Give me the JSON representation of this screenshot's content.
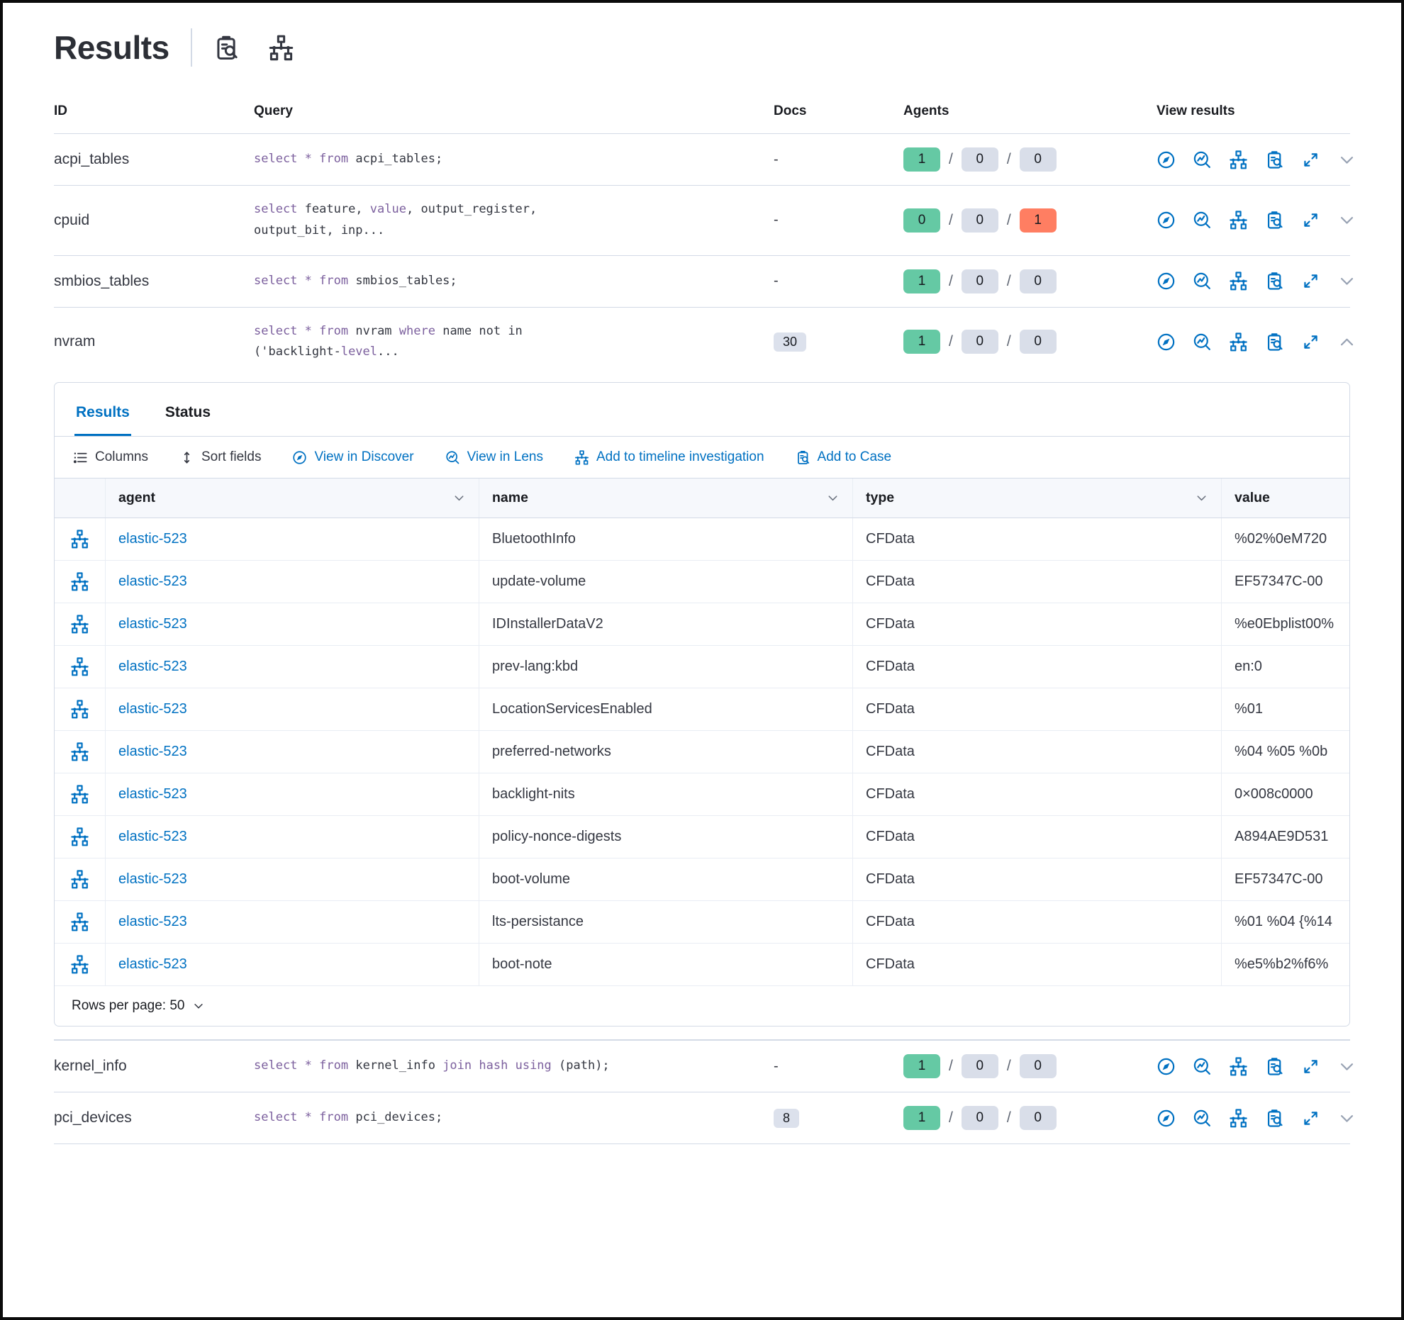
{
  "page": {
    "title": "Results"
  },
  "colors": {
    "accent_blue": "#0071C2",
    "keyword_purple": "#7C609E",
    "badge_green": "#65C9A4",
    "badge_gray": "#D9DEE9",
    "badge_red": "#FF7E62",
    "border": "#D3DAE6"
  },
  "table": {
    "columns": [
      "ID",
      "Query",
      "Docs",
      "Agents",
      "View results"
    ],
    "rows": [
      {
        "id": "acpi_tables",
        "query_lines": [
          [
            [
              "select",
              "k"
            ],
            [
              " ",
              "t"
            ],
            [
              "*",
              "k"
            ],
            [
              " ",
              "t"
            ],
            [
              "from",
              "k"
            ],
            [
              " acpi_tables;",
              "t"
            ]
          ]
        ],
        "docs": "-",
        "docs_badge": false,
        "agents": [
          [
            "1",
            "green"
          ],
          [
            "0",
            "gray"
          ],
          [
            "0",
            "gray"
          ]
        ],
        "expanded": false
      },
      {
        "id": "cpuid",
        "query_lines": [
          [
            [
              "select",
              "k"
            ],
            [
              " feature, ",
              "t"
            ],
            [
              "value",
              "k"
            ],
            [
              ", output_register,",
              "t"
            ]
          ],
          [
            [
              "output_bit, inp...",
              "t"
            ]
          ]
        ],
        "docs": "-",
        "docs_badge": false,
        "agents": [
          [
            "0",
            "green"
          ],
          [
            "0",
            "gray"
          ],
          [
            "1",
            "red"
          ]
        ],
        "expanded": false
      },
      {
        "id": "smbios_tables",
        "query_lines": [
          [
            [
              "select",
              "k"
            ],
            [
              " ",
              "t"
            ],
            [
              "*",
              "k"
            ],
            [
              " ",
              "t"
            ],
            [
              "from",
              "k"
            ],
            [
              " smbios_tables;",
              "t"
            ]
          ]
        ],
        "docs": "-",
        "docs_badge": false,
        "agents": [
          [
            "1",
            "green"
          ],
          [
            "0",
            "gray"
          ],
          [
            "0",
            "gray"
          ]
        ],
        "expanded": false
      },
      {
        "id": "nvram",
        "query_lines": [
          [
            [
              "select",
              "k"
            ],
            [
              " ",
              "t"
            ],
            [
              "*",
              "k"
            ],
            [
              " ",
              "t"
            ],
            [
              "from",
              "k"
            ],
            [
              " nvram ",
              "t"
            ],
            [
              "where",
              "k"
            ],
            [
              " name not in",
              "t"
            ]
          ],
          [
            [
              "('backlight-",
              "t"
            ],
            [
              "level",
              "k"
            ],
            [
              "...",
              "t"
            ]
          ]
        ],
        "docs": "30",
        "docs_badge": true,
        "agents": [
          [
            "1",
            "green"
          ],
          [
            "0",
            "gray"
          ],
          [
            "0",
            "gray"
          ]
        ],
        "expanded": true
      },
      {
        "id": "kernel_info",
        "query_lines": [
          [
            [
              "select",
              "k"
            ],
            [
              " ",
              "t"
            ],
            [
              "*",
              "k"
            ],
            [
              " ",
              "t"
            ],
            [
              "from",
              "k"
            ],
            [
              " kernel_info ",
              "t"
            ],
            [
              "join",
              "k"
            ],
            [
              " ",
              "t"
            ],
            [
              "hash",
              "k"
            ],
            [
              " ",
              "t"
            ],
            [
              "using",
              "k"
            ],
            [
              " (path);",
              "t"
            ]
          ]
        ],
        "docs": "-",
        "docs_badge": false,
        "agents": [
          [
            "1",
            "green"
          ],
          [
            "0",
            "gray"
          ],
          [
            "0",
            "gray"
          ]
        ],
        "expanded": false
      },
      {
        "id": "pci_devices",
        "query_lines": [
          [
            [
              "select",
              "k"
            ],
            [
              " ",
              "t"
            ],
            [
              "*",
              "k"
            ],
            [
              " ",
              "t"
            ],
            [
              "from",
              "k"
            ],
            [
              " pci_devices;",
              "t"
            ]
          ]
        ],
        "docs": "8",
        "docs_badge": true,
        "agents": [
          [
            "1",
            "green"
          ],
          [
            "0",
            "gray"
          ],
          [
            "0",
            "gray"
          ]
        ],
        "expanded": false
      }
    ]
  },
  "panel": {
    "tabs": [
      {
        "label": "Results",
        "active": true
      },
      {
        "label": "Status",
        "active": false
      }
    ],
    "toolbar": [
      {
        "label": "Columns",
        "icon": "columns",
        "link": false
      },
      {
        "label": "Sort fields",
        "icon": "sort",
        "link": false
      },
      {
        "label": "View in Discover",
        "icon": "discover",
        "link": true
      },
      {
        "label": "View in Lens",
        "icon": "lens",
        "link": true
      },
      {
        "label": "Add to timeline investigation",
        "icon": "timeline",
        "link": true
      },
      {
        "label": "Add to Case",
        "icon": "casebook",
        "link": true
      }
    ],
    "grid": {
      "columns": [
        {
          "label": "agent",
          "sortable": true
        },
        {
          "label": "name",
          "sortable": true
        },
        {
          "label": "type",
          "sortable": true
        },
        {
          "label": "value",
          "sortable": false
        }
      ],
      "rows": [
        {
          "agent": "elastic-523",
          "name": "BluetoothInfo",
          "type": "CFData",
          "value": "%02%0eM720"
        },
        {
          "agent": "elastic-523",
          "name": "update-volume",
          "type": "CFData",
          "value": "EF57347C-00"
        },
        {
          "agent": "elastic-523",
          "name": "IDInstallerDataV2",
          "type": "CFData",
          "value": "%e0Ebplist00%"
        },
        {
          "agent": "elastic-523",
          "name": "prev-lang:kbd",
          "type": "CFData",
          "value": "en:0"
        },
        {
          "agent": "elastic-523",
          "name": "LocationServicesEnabled",
          "type": "CFData",
          "value": "%01"
        },
        {
          "agent": "elastic-523",
          "name": "preferred-networks",
          "type": "CFData",
          "value": "%04 %05 %0b"
        },
        {
          "agent": "elastic-523",
          "name": "backlight-nits",
          "type": "CFData",
          "value": "0×008c0000"
        },
        {
          "agent": "elastic-523",
          "name": "policy-nonce-digests",
          "type": "CFData",
          "value": "A894AE9D531"
        },
        {
          "agent": "elastic-523",
          "name": "boot-volume",
          "type": "CFData",
          "value": "EF57347C-00"
        },
        {
          "agent": "elastic-523",
          "name": "lts-persistance",
          "type": "CFData",
          "value": "%01 %04 {%14"
        },
        {
          "agent": "elastic-523",
          "name": "boot-note",
          "type": "CFData",
          "value": "%e5%b2%f6%"
        }
      ]
    },
    "footer": {
      "rows_per_page_label": "Rows per page: 50"
    }
  }
}
